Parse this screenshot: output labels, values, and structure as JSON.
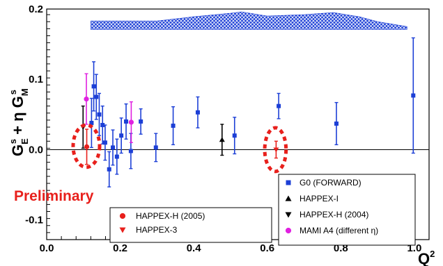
{
  "chart_data": {
    "type": "scatter",
    "title": "",
    "xlabel": "Q",
    "xlabel_sup": "2",
    "ylabel": {
      "p1": "G",
      "p1_sup": "s",
      "p1_sub": "E",
      "p2": " + η G",
      "p2_sup": "s",
      "p2_sub": "M"
    },
    "xlim": [
      0.0,
      1.04
    ],
    "ylim": [
      -0.128,
      0.2
    ],
    "x_ticks": [
      0.0,
      0.2,
      0.4,
      0.6,
      0.8,
      1.0
    ],
    "x_tick_labels": [
      "0.0",
      "0.2",
      "0.4",
      "0.6",
      "0.8",
      "1.0"
    ],
    "y_ticks": [
      -0.1,
      0.0,
      0.1,
      0.2
    ],
    "y_tick_labels": [
      "-0.1",
      "0.0",
      "0.1",
      "0.2"
    ],
    "reference_line_y": 0.0,
    "annotation": "Preliminary",
    "systematic_band": {
      "x": [
        0.12,
        0.2,
        0.3,
        0.4,
        0.5,
        0.53,
        0.6,
        0.7,
        0.78,
        0.85,
        0.9,
        0.98
      ],
      "lower": [
        0.171,
        0.171,
        0.171,
        0.171,
        0.171,
        0.171,
        0.171,
        0.171,
        0.171,
        0.171,
        0.171,
        0.171
      ],
      "upper": [
        0.183,
        0.183,
        0.183,
        0.189,
        0.194,
        0.196,
        0.19,
        0.192,
        0.195,
        0.189,
        0.182,
        0.175
      ]
    },
    "series": [
      {
        "name": "G0 (FORWARD)",
        "color": "#1c3fd6",
        "marker": "square",
        "x": [
          0.122,
          0.128,
          0.135,
          0.143,
          0.152,
          0.159,
          0.17,
          0.18,
          0.191,
          0.203,
          0.216,
          0.229,
          0.256,
          0.297,
          0.344,
          0.411,
          0.511,
          0.631,
          0.788,
          0.997
        ],
        "y": [
          0.038,
          0.09,
          0.075,
          0.05,
          0.035,
          0.01,
          -0.028,
          0.003,
          -0.01,
          0.02,
          0.04,
          -0.002,
          0.04,
          0.003,
          0.034,
          0.053,
          0.02,
          0.062,
          0.037,
          0.077
        ],
        "err": [
          0.035,
          0.035,
          0.032,
          0.03,
          0.027,
          0.025,
          0.025,
          0.025,
          0.025,
          0.025,
          0.025,
          0.025,
          0.018,
          0.02,
          0.027,
          0.022,
          0.026,
          0.018,
          0.03,
          0.082
        ]
      },
      {
        "name": "HAPPEX-I",
        "color": "#000000",
        "marker": "triangle-up",
        "x": [
          0.477
        ],
        "y": [
          0.014
        ],
        "err": [
          0.022
        ]
      },
      {
        "name": "HAPPEX-H (2004)",
        "color": "#000000",
        "marker": "triangle-down",
        "x": [
          0.099
        ],
        "y": [
          0.032
        ],
        "err": [
          0.03
        ]
      },
      {
        "name": "MAMI A4 (different η)",
        "color": "#e020e0",
        "marker": "circle",
        "x": [
          0.108,
          0.23
        ],
        "y": [
          0.072,
          0.039
        ],
        "err": [
          0.036,
          0.029
        ]
      },
      {
        "name": "HAPPEX-H (2005)",
        "color": "#e8201c",
        "marker": "circle",
        "x": [
          0.109
        ],
        "y": [
          0.004
        ],
        "err": [
          0.025
        ]
      },
      {
        "name": "HAPPEX-3",
        "color": "#e8201c",
        "marker": "triangle-down",
        "x": [
          0.624
        ],
        "y": [
          0.0
        ],
        "err": [
          0.012
        ]
      }
    ],
    "highlight_circles": [
      {
        "x": 0.108,
        "y": 0.005,
        "rx": 0.036,
        "ry": 0.03
      },
      {
        "x": 0.622,
        "y": 0.0,
        "rx": 0.029,
        "ry": 0.031
      }
    ],
    "legend_left": {
      "placement": "bottom-center",
      "entries": [
        "HAPPEX-H (2005)",
        "HAPPEX-3"
      ]
    },
    "legend_right": {
      "placement": "bottom-right",
      "entries": [
        "G0 (FORWARD)",
        "HAPPEX-I",
        "HAPPEX-H (2004)",
        "MAMI A4 (different η)"
      ]
    }
  }
}
